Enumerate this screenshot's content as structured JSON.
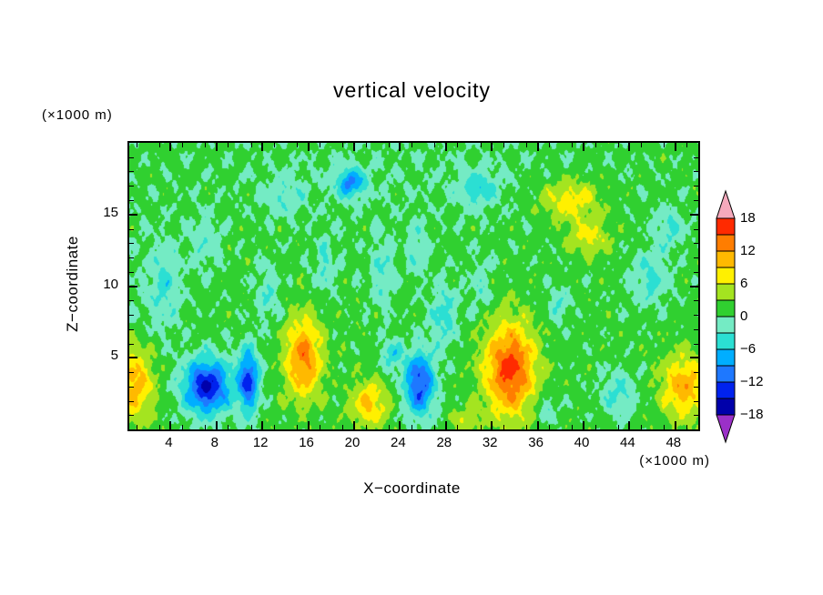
{
  "page": {
    "background": "#FFFFFF"
  },
  "chart_data": {
    "type": "contour",
    "title": "vertical velocity",
    "xlabel": "X−coordinate",
    "ylabel": "Z−coordinate",
    "x_unit_label": "(×1000 m)",
    "z_unit_label": "(×1000 m)",
    "x_range": [
      0.4,
      50
    ],
    "z_range": [
      0,
      20
    ],
    "x_ticks": [
      4,
      8,
      12,
      16,
      20,
      24,
      28,
      32,
      36,
      40,
      44,
      48
    ],
    "x_minor_step": 2,
    "z_ticks": [
      5,
      10,
      15
    ],
    "z_minor_step": 1,
    "contour_interval": 3,
    "levels": [
      -18,
      -15,
      -12,
      -9,
      -6,
      -3,
      0,
      3,
      6,
      9,
      12,
      15,
      18
    ],
    "colorbar": {
      "labels_top_to_bottom": [
        "18",
        "12",
        "6",
        "0",
        "−6",
        "−12",
        "−18"
      ],
      "band_colors_bottom_to_top": [
        "#0000AA",
        "#0022EE",
        "#1E78FF",
        "#00AEFF",
        "#2BDFD3",
        "#74EBC4",
        "#30D030",
        "#A4E420",
        "#FFF000",
        "#FFB900",
        "#FF7D00",
        "#FF2A00"
      ],
      "under_color": "#9B30C8",
      "over_color": "#F5A9BC"
    },
    "field": {
      "base": 1.15,
      "clamp": [
        -17.9,
        17.9
      ],
      "blobs": [
        [
          0.8,
          3.2,
          10.0,
          1.8,
          2.6
        ],
        [
          7.2,
          3.0,
          -16.5,
          2.0,
          1.9
        ],
        [
          10.8,
          3.4,
          -14.0,
          0.9,
          2.2
        ],
        [
          15.6,
          5.0,
          12.0,
          1.6,
          2.8
        ],
        [
          21.3,
          1.8,
          8.5,
          1.6,
          1.6
        ],
        [
          25.7,
          3.2,
          -14.0,
          1.3,
          2.2
        ],
        [
          23.3,
          5.2,
          -6.0,
          0.9,
          1.1
        ],
        [
          33.6,
          4.2,
          15.2,
          2.2,
          3.2
        ],
        [
          48.8,
          3.0,
          10.0,
          2.0,
          2.2
        ],
        [
          19.7,
          17.2,
          -10.0,
          1.3,
          1.0
        ],
        [
          30.8,
          16.8,
          -6.0,
          1.6,
          1.2
        ],
        [
          38.8,
          16.0,
          7.0,
          2.6,
          1.4
        ],
        [
          40.5,
          13.4,
          6.0,
          1.8,
          1.2
        ],
        [
          27.8,
          8.0,
          -5.5,
          1.2,
          2.2
        ],
        [
          45.8,
          10.5,
          -5.0,
          1.6,
          1.8
        ],
        [
          47.5,
          14.0,
          -4.5,
          1.4,
          1.4
        ],
        [
          3.5,
          10.0,
          -4.5,
          1.2,
          2.5
        ],
        [
          12.5,
          9.5,
          -4.0,
          1.0,
          2.0
        ],
        [
          17.5,
          11.5,
          -4.0,
          1.0,
          2.0
        ],
        [
          22.5,
          11.0,
          -4.5,
          1.0,
          2.5
        ],
        [
          25.5,
          12.5,
          -4.0,
          0.8,
          2.0
        ],
        [
          31.0,
          10.0,
          -3.5,
          1.0,
          1.8
        ],
        [
          43.0,
          2.5,
          -5.0,
          1.5,
          1.5
        ],
        [
          36.8,
          1.5,
          -4.0,
          1.0,
          1.0
        ],
        [
          37.8,
          8.7,
          -4.0,
          1.0,
          1.2
        ],
        [
          29.8,
          0.6,
          4.5,
          1.2,
          0.9
        ],
        [
          14.0,
          16.3,
          -3.5,
          1.8,
          1.3
        ],
        [
          7.0,
          13.0,
          -3.0,
          1.5,
          2.0
        ],
        [
          24.0,
          18.0,
          -1.0,
          20.0,
          4.0
        ],
        [
          2.0,
          9.0,
          -1.2,
          3.0,
          6.0
        ]
      ],
      "noise": [
        [
          1.25,
          1.9,
          2.6,
          0.5,
          1.2
        ],
        [
          1.0,
          3.4,
          1.5,
          2.3,
          0.4
        ],
        [
          0.85,
          5.9,
          4.3,
          4.1,
          2.8
        ],
        [
          0.6,
          9.3,
          7.7,
          1.9,
          5.0
        ]
      ],
      "striation": {
        "amp": 1.1,
        "kx": 4.2,
        "kz": 0.5,
        "px": 0.9,
        "env": [
          19.5,
          11.0,
          10.0,
          5.5
        ]
      }
    }
  }
}
